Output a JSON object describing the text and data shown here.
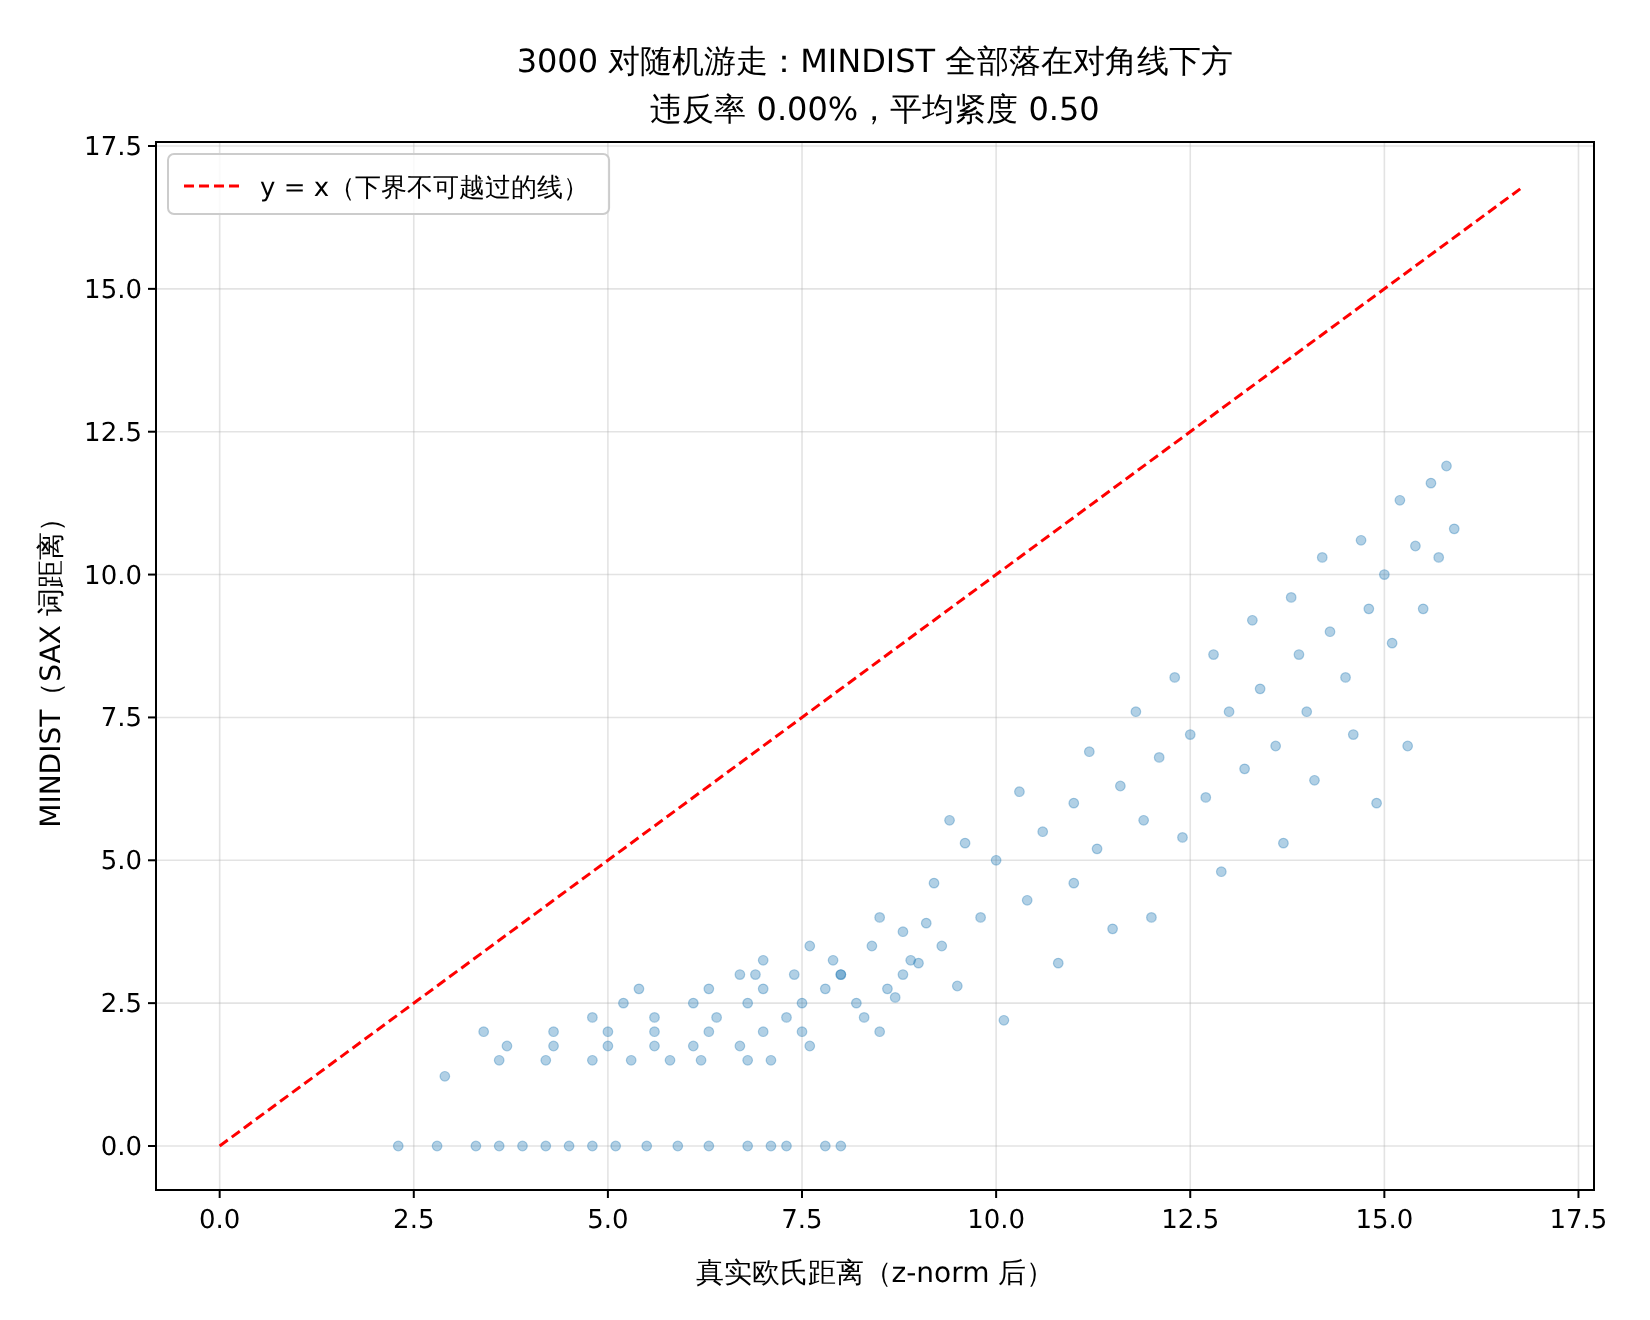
{
  "chart_data": {
    "type": "scatter",
    "title": "3000 对随机游走：MINDIST 全部落在对角线下方",
    "subtitle": "违反率 0.00%，平均紧度 0.50",
    "xlabel": "真实欧氏距离（z-norm 后）",
    "ylabel": "MINDIST（SAX 词距离）",
    "xlim": [
      -0.82,
      17.7
    ],
    "ylim": [
      -0.77,
      17.57
    ],
    "xticks": [
      {
        "value": 0,
        "label": "0.0"
      },
      2.5,
      {
        "value": 5,
        "label": "5.0"
      },
      7.5,
      {
        "value": 10,
        "label": "10.0"
      },
      12.5,
      {
        "value": 15,
        "label": "15.0"
      },
      17.5
    ],
    "yticks": [
      {
        "value": 0,
        "label": "0.0"
      },
      2.5,
      {
        "value": 5,
        "label": "5.0"
      },
      7.5,
      {
        "value": 10,
        "label": "10.0"
      },
      12.5,
      {
        "value": 15,
        "label": "15.0"
      },
      17.5
    ],
    "grid": true,
    "legend": "top left",
    "series": [
      {
        "color": "#1f77b4",
        "marker": "circle",
        "x": [
          2.3,
          2.8,
          3.3,
          3.6,
          3.9,
          4.2,
          4.5,
          4.8,
          5.1,
          5.5,
          5.9,
          6.3,
          6.8,
          7.1,
          7.3,
          7.8,
          8.0,
          2.9,
          3.6,
          4.2,
          4.8,
          5.3,
          5.8,
          6.2,
          6.8,
          7.1,
          3.7,
          4.3,
          5.0,
          5.6,
          6.1,
          6.7,
          7.6,
          3.4,
          4.3,
          5.0,
          5.6,
          6.3,
          7.0,
          7.5,
          8.5,
          4.8,
          5.6,
          6.4,
          7.3,
          8.3,
          5.2,
          6.1,
          6.8,
          7.5,
          8.2,
          5.4,
          6.3,
          7.0,
          7.8,
          8.6,
          6.7,
          7.4,
          8.0,
          8.8,
          7.0,
          7.9,
          8.9,
          7.6,
          8.4,
          9.3,
          8.8,
          8.5,
          9.0,
          9.2,
          9.5,
          9.6,
          9.8,
          10.0,
          10.1,
          10.3,
          10.4,
          10.6,
          10.8,
          11.0,
          11.0,
          11.2,
          11.3,
          11.5,
          11.6,
          11.8,
          11.9,
          12.0,
          12.1,
          12.3,
          12.4,
          12.5,
          12.7,
          12.8,
          12.9,
          13.0,
          13.2,
          13.3,
          13.4,
          13.6,
          13.7,
          13.8,
          13.9,
          14.0,
          14.1,
          14.2,
          14.3,
          14.5,
          14.6,
          14.7,
          14.8,
          14.9,
          15.0,
          15.1,
          15.2,
          15.3,
          15.4,
          15.5,
          15.6,
          15.7,
          15.8,
          15.9,
          8.0,
          8.7,
          9.1,
          6.9,
          9.4
        ],
        "values": [
          0,
          0,
          0,
          0,
          0,
          0,
          0,
          0,
          0,
          0,
          0,
          0,
          0,
          0,
          0,
          0,
          0,
          1.22,
          1.5,
          1.5,
          1.5,
          1.5,
          1.5,
          1.5,
          1.5,
          1.5,
          1.75,
          1.75,
          1.75,
          1.75,
          1.75,
          1.75,
          1.75,
          2.0,
          2.0,
          2.0,
          2.0,
          2.0,
          2.0,
          2.0,
          2.0,
          2.25,
          2.25,
          2.25,
          2.25,
          2.25,
          2.5,
          2.5,
          2.5,
          2.5,
          2.5,
          2.75,
          2.75,
          2.75,
          2.75,
          2.75,
          3.0,
          3.0,
          3.0,
          3.0,
          3.25,
          3.25,
          3.25,
          3.5,
          3.5,
          3.5,
          3.75,
          4.0,
          3.2,
          4.6,
          2.8,
          5.3,
          4.0,
          5.0,
          2.2,
          6.2,
          4.3,
          5.5,
          3.2,
          6.0,
          4.6,
          6.9,
          5.2,
          3.8,
          6.3,
          7.6,
          5.7,
          4.0,
          6.8,
          8.2,
          5.4,
          7.2,
          6.1,
          8.6,
          4.8,
          7.6,
          6.6,
          9.2,
          8.0,
          7.0,
          5.3,
          9.6,
          8.6,
          7.6,
          6.4,
          10.3,
          9.0,
          8.2,
          7.2,
          10.6,
          9.4,
          6.0,
          10.0,
          8.8,
          11.3,
          7.0,
          10.5,
          9.4,
          11.6,
          10.3,
          11.9,
          10.8,
          3.0,
          2.6,
          3.9,
          3.0,
          5.7
        ]
      },
      {
        "type": "line",
        "name": "y = x（下界不可越过的线）",
        "color": "#ff0000",
        "line_style": "dashed",
        "marker": "none",
        "x": [
          0,
          16.75
        ],
        "values": [
          0,
          16.75
        ]
      }
    ]
  }
}
